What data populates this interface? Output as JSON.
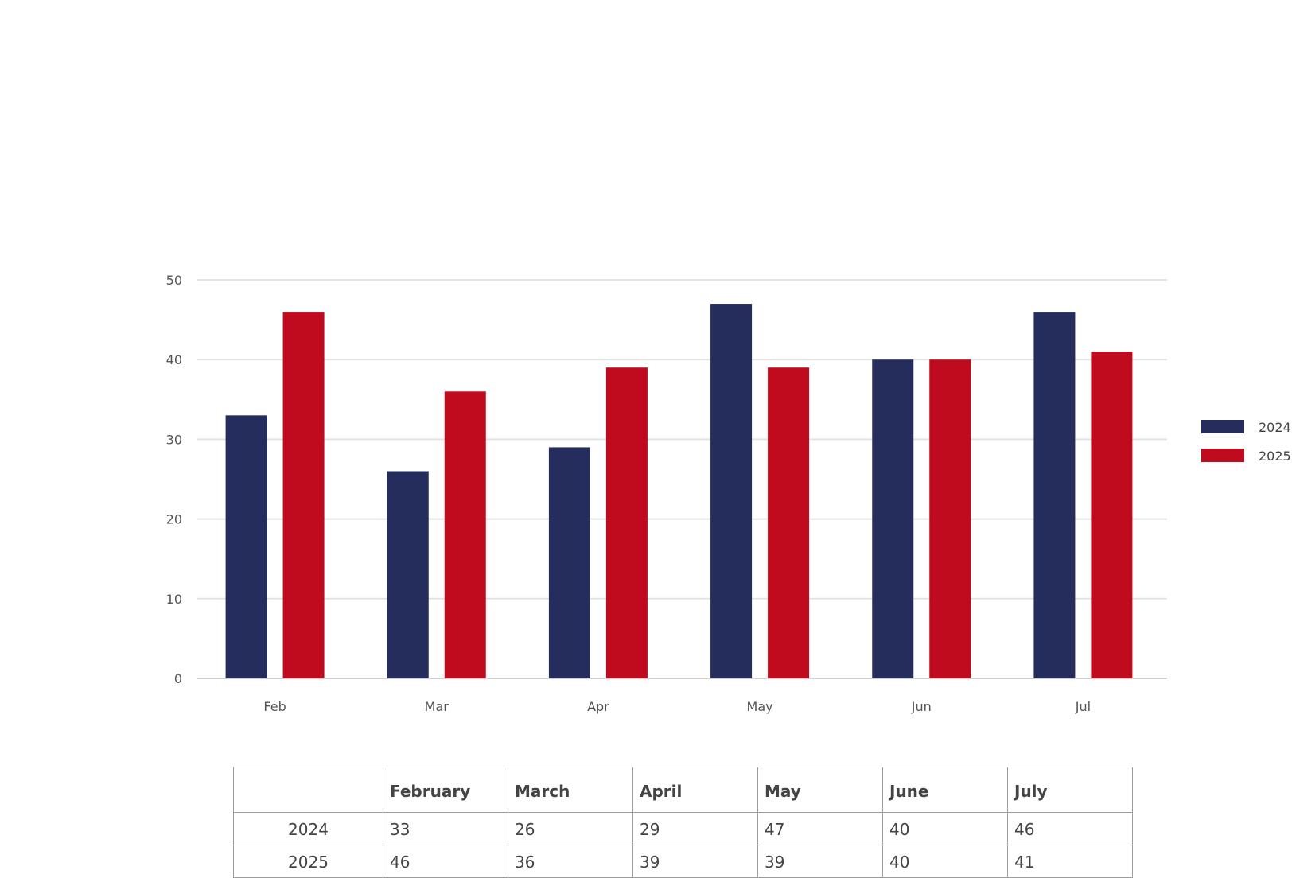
{
  "chart_data": {
    "type": "bar",
    "categories": [
      "Feb",
      "Mar",
      "Apr",
      "May",
      "Jun",
      "Jul"
    ],
    "series": [
      {
        "name": "2024",
        "values": [
          33,
          26,
          29,
          47,
          40,
          46
        ],
        "color": "#252d5c"
      },
      {
        "name": "2025",
        "values": [
          46,
          36,
          39,
          39,
          40,
          41
        ],
        "color": "#c00a1e"
      }
    ],
    "ylim": [
      0,
      50
    ],
    "yticks": [
      0,
      10,
      20,
      30,
      40,
      50
    ],
    "grid": true,
    "legend": "right",
    "title": "",
    "xlabel": "",
    "ylabel": ""
  },
  "table": {
    "headers": [
      "",
      "February",
      "March",
      "April",
      "May",
      "June",
      "July"
    ],
    "rows": [
      {
        "label": "2024",
        "values": [
          "33",
          "26",
          "29",
          "47",
          "40",
          "46"
        ]
      },
      {
        "label": "2025",
        "values": [
          "46",
          "36",
          "39",
          "39",
          "40",
          "41"
        ]
      }
    ]
  }
}
